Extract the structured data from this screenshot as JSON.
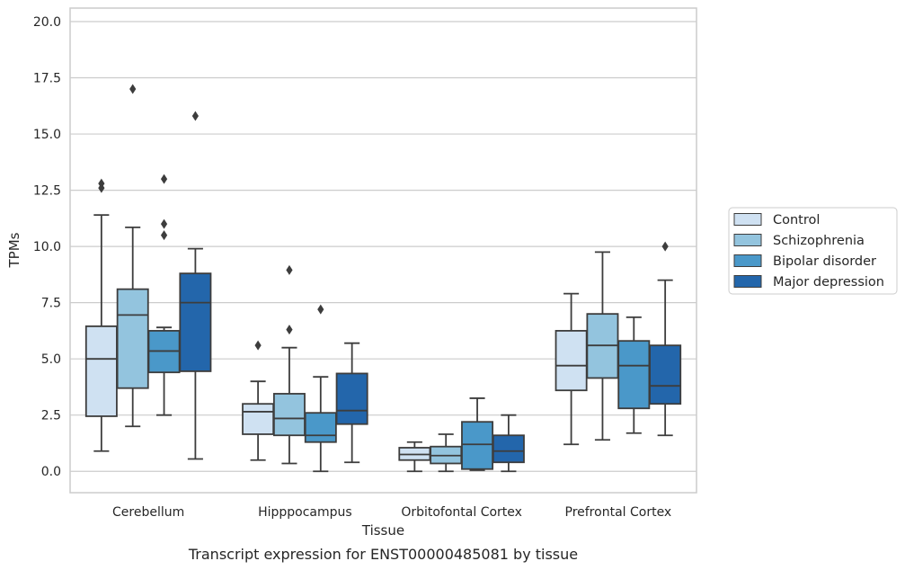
{
  "chart_data": {
    "type": "boxplot",
    "caption": "Transcript expression for ENST00000485081 by tissue",
    "xlabel": "Tissue",
    "ylabel": "TPMs",
    "ylim": [
      -0.95,
      20.6
    ],
    "yticks": [
      "0.0",
      "2.5",
      "5.0",
      "7.5",
      "10.0",
      "12.5",
      "15.0",
      "17.5",
      "20.0"
    ],
    "ytick_values": [
      0,
      2.5,
      5,
      7.5,
      10,
      12.5,
      15,
      17.5,
      20
    ],
    "categories": [
      "Cerebellum",
      "Hipppocampus",
      "Orbitofontal Cortex",
      "Prefrontal Cortex"
    ],
    "grid": "horizontal",
    "legend_position": "right",
    "series": [
      {
        "name": "Control",
        "color": "#cfe1f2",
        "boxes": [
          {
            "whislo": 0.9,
            "q1": 2.45,
            "med": 5.0,
            "q3": 6.45,
            "whishi": 11.4,
            "fliers": [
              12.6,
              12.8
            ]
          },
          {
            "whislo": 0.5,
            "q1": 1.65,
            "med": 2.65,
            "q3": 3.0,
            "whishi": 4.0,
            "fliers": [
              5.6
            ]
          },
          {
            "whislo": 0.0,
            "q1": 0.5,
            "med": 0.75,
            "q3": 1.05,
            "whishi": 1.3,
            "fliers": []
          },
          {
            "whislo": 1.2,
            "q1": 3.6,
            "med": 4.7,
            "q3": 6.25,
            "whishi": 7.9,
            "fliers": []
          }
        ]
      },
      {
        "name": "Schizophrenia",
        "color": "#93c4de",
        "boxes": [
          {
            "whislo": 2.0,
            "q1": 3.7,
            "med": 6.95,
            "q3": 8.1,
            "whishi": 10.85,
            "fliers": [
              17.0
            ]
          },
          {
            "whislo": 0.35,
            "q1": 1.6,
            "med": 2.35,
            "q3": 3.45,
            "whishi": 5.5,
            "fliers": [
              6.3,
              8.95
            ]
          },
          {
            "whislo": 0.0,
            "q1": 0.35,
            "med": 0.7,
            "q3": 1.1,
            "whishi": 1.65,
            "fliers": []
          },
          {
            "whislo": 1.4,
            "q1": 4.15,
            "med": 5.6,
            "q3": 7.0,
            "whishi": 9.75,
            "fliers": []
          }
        ]
      },
      {
        "name": "Bipolar disorder",
        "color": "#4a98c9",
        "boxes": [
          {
            "whislo": 2.5,
            "q1": 4.4,
            "med": 5.35,
            "q3": 6.25,
            "whishi": 6.4,
            "fliers": [
              10.5,
              11.0,
              13.0
            ]
          },
          {
            "whislo": 0.0,
            "q1": 1.3,
            "med": 1.6,
            "q3": 2.6,
            "whishi": 4.2,
            "fliers": [
              7.2
            ]
          },
          {
            "whislo": 0.05,
            "q1": 0.1,
            "med": 1.2,
            "q3": 2.2,
            "whishi": 3.25,
            "fliers": []
          },
          {
            "whislo": 1.7,
            "q1": 2.8,
            "med": 4.7,
            "q3": 5.8,
            "whishi": 6.85,
            "fliers": []
          }
        ]
      },
      {
        "name": "Major depression",
        "color": "#2366ab",
        "boxes": [
          {
            "whislo": 0.55,
            "q1": 4.45,
            "med": 7.5,
            "q3": 8.8,
            "whishi": 9.9,
            "fliers": [
              15.8
            ]
          },
          {
            "whislo": 0.4,
            "q1": 2.1,
            "med": 2.7,
            "q3": 4.35,
            "whishi": 5.7,
            "fliers": []
          },
          {
            "whislo": 0.0,
            "q1": 0.4,
            "med": 0.9,
            "q3": 1.6,
            "whishi": 2.5,
            "fliers": []
          },
          {
            "whislo": 1.6,
            "q1": 3.0,
            "med": 3.8,
            "q3": 5.6,
            "whishi": 8.5,
            "fliers": [
              10.0
            ]
          }
        ]
      }
    ]
  }
}
